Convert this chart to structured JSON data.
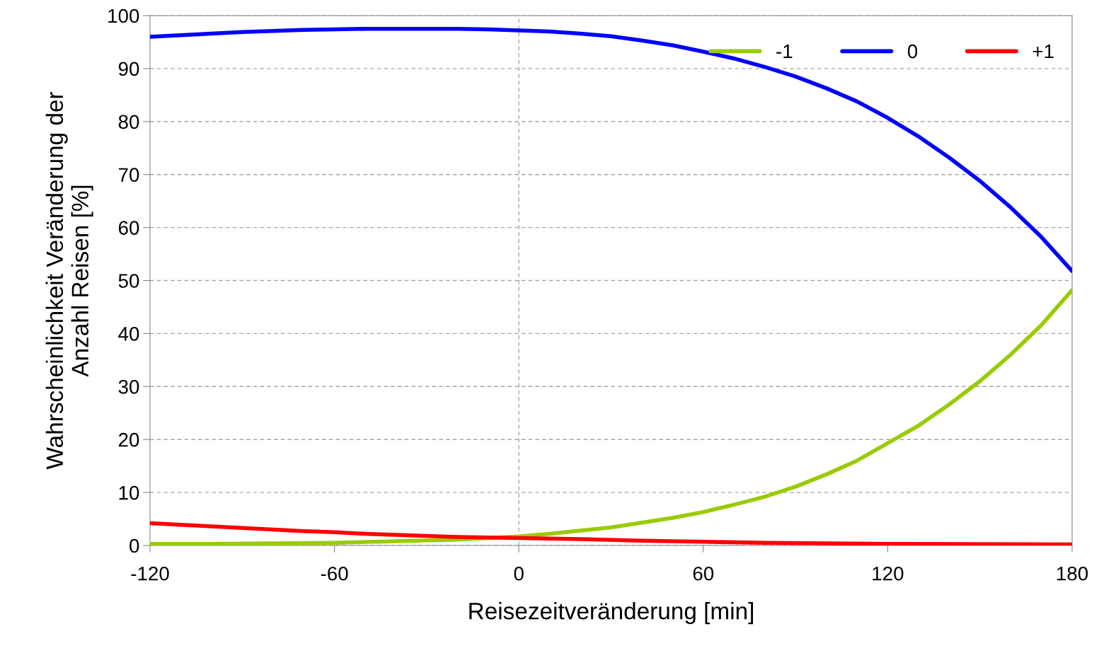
{
  "chart_data": {
    "type": "line",
    "xlabel": "Reisezeitveränderung [min]",
    "ylabel": "Wahrscheinlichkeit Veränderung der\nAnzahl Reisen [%]",
    "xlim": [
      -120,
      180
    ],
    "xticks": [
      -120,
      -60,
      0,
      60,
      120,
      180
    ],
    "ylim": [
      0,
      100
    ],
    "yticks": [
      0,
      10,
      20,
      30,
      40,
      50,
      60,
      70,
      80,
      90,
      100
    ],
    "grid": "y",
    "legend": "top right",
    "marker": "none",
    "line_style": "solid",
    "ref_lines": [
      {
        "axis": "x",
        "value": 0,
        "color": "#a6a6a6",
        "line_style": "dashed"
      }
    ],
    "series": [
      {
        "name": "-1",
        "color": "#99cc00",
        "x": [
          -120,
          -100,
          -80,
          -60,
          -40,
          -20,
          0,
          10,
          20,
          30,
          40,
          50,
          60,
          70,
          80,
          90,
          100,
          110,
          120,
          130,
          140,
          150,
          160,
          170,
          180
        ],
        "values": [
          0.3,
          0.3,
          0.4,
          0.5,
          0.8,
          1.1,
          1.7,
          2.2,
          2.8,
          3.4,
          4.3,
          5.2,
          6.3,
          7.7,
          9.2,
          11.1,
          13.4,
          16.0,
          19.3,
          22.6,
          26.6,
          31.0,
          36.0,
          41.6,
          48.2
        ]
      },
      {
        "name": "0",
        "color": "#0000ff",
        "x": [
          -120,
          -110,
          -100,
          -90,
          -80,
          -70,
          -60,
          -50,
          -40,
          -30,
          -20,
          -10,
          0,
          10,
          20,
          30,
          40,
          50,
          60,
          70,
          80,
          90,
          100,
          110,
          120,
          130,
          140,
          150,
          160,
          170,
          180
        ],
        "values": [
          96.0,
          96.3,
          96.6,
          96.9,
          97.1,
          97.3,
          97.4,
          97.5,
          97.5,
          97.5,
          97.5,
          97.4,
          97.2,
          97.0,
          96.6,
          96.1,
          95.3,
          94.4,
          93.2,
          91.9,
          90.3,
          88.5,
          86.3,
          83.8,
          80.7,
          77.2,
          73.2,
          68.8,
          63.8,
          58.2,
          51.8
        ]
      },
      {
        "name": "+1",
        "color": "#ff0000",
        "x": [
          -120,
          -110,
          -100,
          -90,
          -80,
          -70,
          -60,
          -50,
          -40,
          -30,
          -20,
          -10,
          0,
          20,
          40,
          60,
          80,
          100,
          120,
          180
        ],
        "values": [
          4.2,
          3.9,
          3.6,
          3.3,
          3.0,
          2.7,
          2.5,
          2.2,
          2.0,
          1.8,
          1.6,
          1.5,
          1.4,
          1.2,
          0.9,
          0.7,
          0.5,
          0.4,
          0.3,
          0.2
        ]
      }
    ]
  }
}
